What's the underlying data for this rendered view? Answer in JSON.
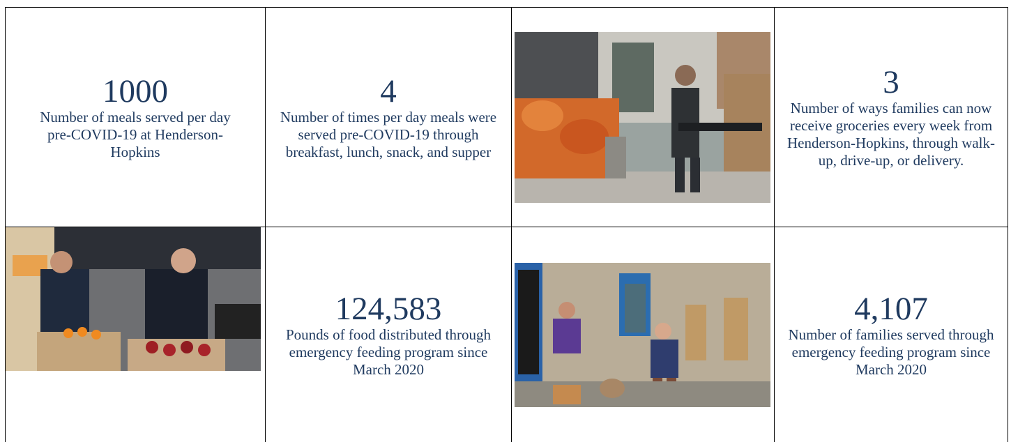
{
  "stats": [
    {
      "number": "1000",
      "caption": "Number of meals served per day pre-COVID-19 at Henderson-Hopkins"
    },
    {
      "number": "4",
      "caption": "Number of times per day meals were served pre-COVID-19 through breakfast, lunch, snack, and supper"
    },
    {
      "number": "3",
      "caption": "Number of ways families can now receive groceries every week from Henderson-Hopkins, through walk-up, drive-up, or delivery."
    },
    {
      "number": "124,583",
      "caption": "Pounds of food distributed through emergency feeding program since March 2020"
    },
    {
      "number": "4,107",
      "caption": "Number of families served through emergency feeding program since March 2020"
    }
  ]
}
